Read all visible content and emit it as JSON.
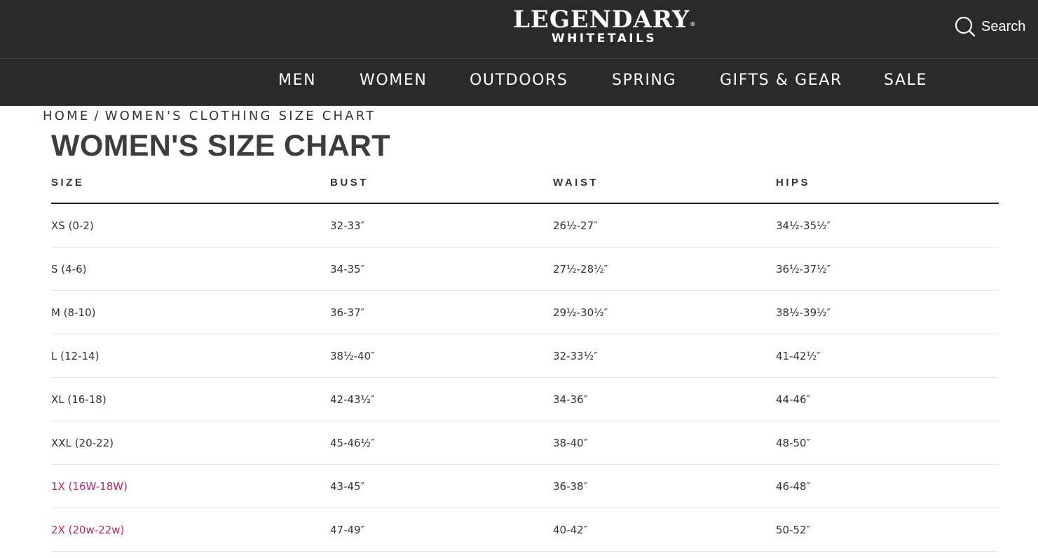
{
  "header": {
    "logo_line1": "LEGENDARY",
    "logo_reg": "®",
    "logo_line2": "WHITETAILS",
    "search_label": "Search",
    "search_icon": "search-icon"
  },
  "nav": {
    "items": [
      {
        "label": "MEN"
      },
      {
        "label": "WOMEN"
      },
      {
        "label": "OUTDOORS"
      },
      {
        "label": "SPRING"
      },
      {
        "label": "GIFTS & GEAR"
      },
      {
        "label": "SALE"
      }
    ]
  },
  "breadcrumb": {
    "home": "HOME",
    "separator": "/",
    "current": "WOMEN'S CLOTHING SIZE CHART"
  },
  "page": {
    "title": "WOMEN'S SIZE CHART"
  },
  "table": {
    "headers": [
      "SIZE",
      "BUST",
      "WAIST",
      "HIPS"
    ],
    "rows": [
      [
        "XS (0-2)",
        "32-33″",
        "26½-27″",
        "34½-35½″"
      ],
      [
        "S (4-6)",
        "34-35″",
        "27½-28½″",
        "36½-37½″"
      ],
      [
        "M (8-10)",
        "36-37″",
        "29½-30½″",
        "38½-39½″"
      ],
      [
        "L (12-14)",
        "38½-40″",
        "32-33½″",
        "41-42½″"
      ],
      [
        "XL (16-18)",
        "42-43½″",
        "34-36″",
        "44-46″"
      ],
      [
        "XXL (20-22)",
        "45-46½″",
        "38-40″",
        "48-50″"
      ],
      [
        "1X (16W-18W)",
        "43-45″",
        "36-38″",
        "46-48″"
      ],
      [
        "2X (20w-22w)",
        "47-49″",
        "40-42″",
        "50-52″"
      ]
    ]
  },
  "colors": {
    "header_bg": "#2a2a2a",
    "plus_size_accent": "#b5266b",
    "text": "#333333"
  }
}
